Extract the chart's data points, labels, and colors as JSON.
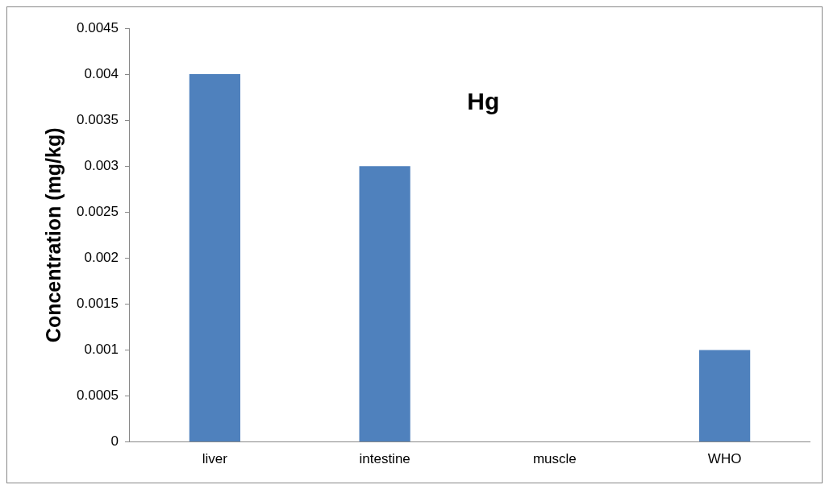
{
  "chart_data": {
    "type": "bar",
    "title": "Hg",
    "ylabel": "Concentration (mg/kg)",
    "categories": [
      "liver",
      "intestine",
      "muscle",
      "WHO"
    ],
    "values": [
      0.004,
      0.003,
      0,
      0.001
    ],
    "color": "#4f81bd",
    "ylim": [
      0,
      0.0045
    ],
    "yticks": [
      0,
      0.0005,
      0.001,
      0.0015,
      0.002,
      0.0025,
      0.003,
      0.0035,
      0.004,
      0.0045
    ],
    "grid": false,
    "legend": false
  }
}
